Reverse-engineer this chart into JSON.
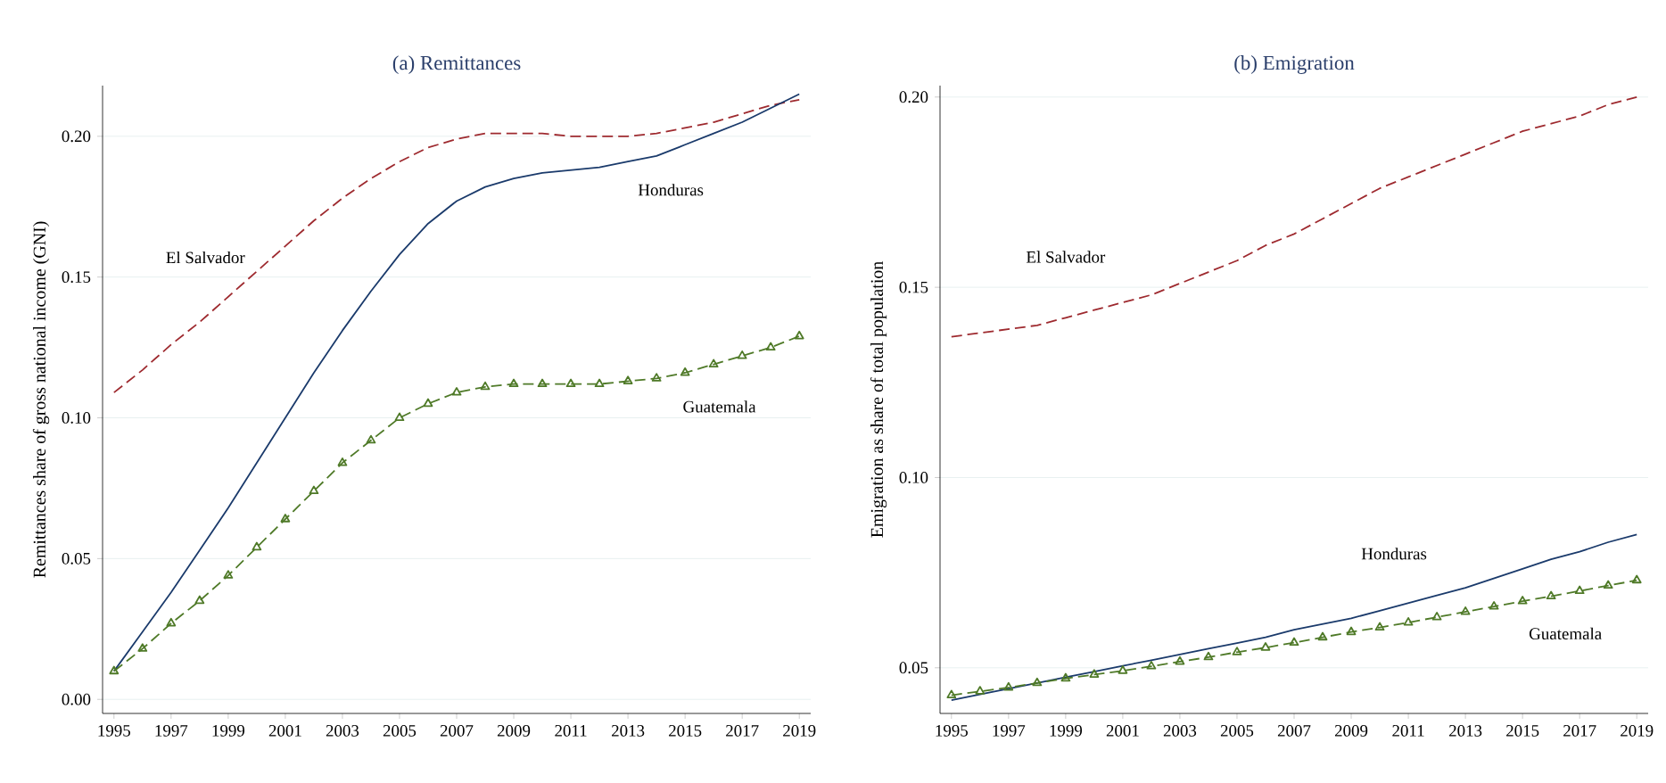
{
  "chart_data": [
    {
      "type": "line",
      "title": "(a) Remittances",
      "ylabel": "Remittances share of gross national income (GNI)",
      "x": [
        1995,
        1996,
        1997,
        1998,
        1999,
        2000,
        2001,
        2002,
        2003,
        2004,
        2005,
        2006,
        2007,
        2008,
        2009,
        2010,
        2011,
        2012,
        2013,
        2014,
        2015,
        2016,
        2017,
        2018,
        2019
      ],
      "series": [
        {
          "name": "El Salvador",
          "color": "#9e2a2f",
          "line_style": "dashed",
          "values": [
            0.109,
            0.117,
            0.126,
            0.134,
            0.143,
            0.152,
            0.161,
            0.17,
            0.178,
            0.185,
            0.191,
            0.196,
            0.199,
            0.201,
            0.201,
            0.201,
            0.2,
            0.2,
            0.2,
            0.201,
            0.203,
            0.205,
            0.208,
            0.211,
            0.213
          ]
        },
        {
          "name": "Honduras",
          "color": "#1a3a6b",
          "line_style": "solid",
          "values": [
            0.01,
            0.024,
            0.038,
            0.053,
            0.068,
            0.084,
            0.1,
            0.116,
            0.131,
            0.145,
            0.158,
            0.169,
            0.177,
            0.182,
            0.185,
            0.187,
            0.188,
            0.189,
            0.191,
            0.193,
            0.197,
            0.201,
            0.205,
            0.21,
            0.215
          ]
        },
        {
          "name": "Guatemala",
          "color": "#4f7a28",
          "line_style": "dashed",
          "marker": "triangle",
          "values": [
            0.01,
            0.018,
            0.027,
            0.035,
            0.044,
            0.054,
            0.064,
            0.074,
            0.084,
            0.092,
            0.1,
            0.105,
            0.109,
            0.111,
            0.112,
            0.112,
            0.112,
            0.112,
            0.113,
            0.114,
            0.116,
            0.119,
            0.122,
            0.125,
            0.129
          ]
        }
      ],
      "xlim": [
        1994.6,
        2019.4
      ],
      "ylim": [
        -0.005,
        0.218
      ],
      "xticks": [
        1995,
        1997,
        1999,
        2001,
        2003,
        2005,
        2007,
        2009,
        2011,
        2013,
        2015,
        2017,
        2019
      ],
      "yticks": [
        {
          "value": 0,
          "label": "0.00"
        },
        {
          "value": 0.05,
          "label": "0.05"
        },
        {
          "value": 0.1,
          "label": "0.10"
        },
        {
          "value": 0.15,
          "label": "0.15"
        },
        {
          "value": 0.2,
          "label": "0.20"
        }
      ],
      "grid": "y"
    },
    {
      "type": "line",
      "title": "(b) Emigration",
      "ylabel": "Emigration as share of total population",
      "x": [
        1995,
        1996,
        1997,
        1998,
        1999,
        2000,
        2001,
        2002,
        2003,
        2004,
        2005,
        2006,
        2007,
        2008,
        2009,
        2010,
        2011,
        2012,
        2013,
        2014,
        2015,
        2016,
        2017,
        2018,
        2019
      ],
      "series": [
        {
          "name": "El Salvador",
          "color": "#9e2a2f",
          "line_style": "dashed",
          "values": [
            0.137,
            0.138,
            0.139,
            0.14,
            0.142,
            0.144,
            0.146,
            0.148,
            0.151,
            0.154,
            0.157,
            0.161,
            0.164,
            0.168,
            0.172,
            0.176,
            0.179,
            0.182,
            0.185,
            0.188,
            0.191,
            0.193,
            0.195,
            0.198,
            0.2
          ]
        },
        {
          "name": "Honduras",
          "color": "#1a3a6b",
          "line_style": "solid",
          "values": [
            0.0415,
            0.043,
            0.0445,
            0.046,
            0.0475,
            0.049,
            0.0505,
            0.052,
            0.0535,
            0.055,
            0.0565,
            0.058,
            0.06,
            0.0615,
            0.063,
            0.065,
            0.067,
            0.069,
            0.071,
            0.0735,
            0.076,
            0.0785,
            0.0805,
            0.083,
            0.085
          ]
        },
        {
          "name": "Guatemala",
          "color": "#4f7a28",
          "line_style": "dashed",
          "marker": "triangle",
          "values": [
            0.0428,
            0.0438,
            0.0448,
            0.046,
            0.0472,
            0.0482,
            0.0492,
            0.0504,
            0.0516,
            0.0528,
            0.0541,
            0.0553,
            0.0566,
            0.058,
            0.0594,
            0.0606,
            0.0619,
            0.0633,
            0.0647,
            0.0661,
            0.0675,
            0.0688,
            0.0702,
            0.0716,
            0.073
          ]
        }
      ],
      "xlim": [
        1994.6,
        2019.4
      ],
      "ylim": [
        0.038,
        0.203
      ],
      "xticks": [
        1995,
        1997,
        1999,
        2001,
        2003,
        2005,
        2007,
        2009,
        2011,
        2013,
        2015,
        2017,
        2019
      ],
      "yticks": [
        {
          "value": 0.05,
          "label": "0.05"
        },
        {
          "value": 0.1,
          "label": "0.10"
        },
        {
          "value": 0.15,
          "label": "0.15"
        },
        {
          "value": 0.2,
          "label": "0.20"
        }
      ],
      "grid": "y"
    }
  ]
}
